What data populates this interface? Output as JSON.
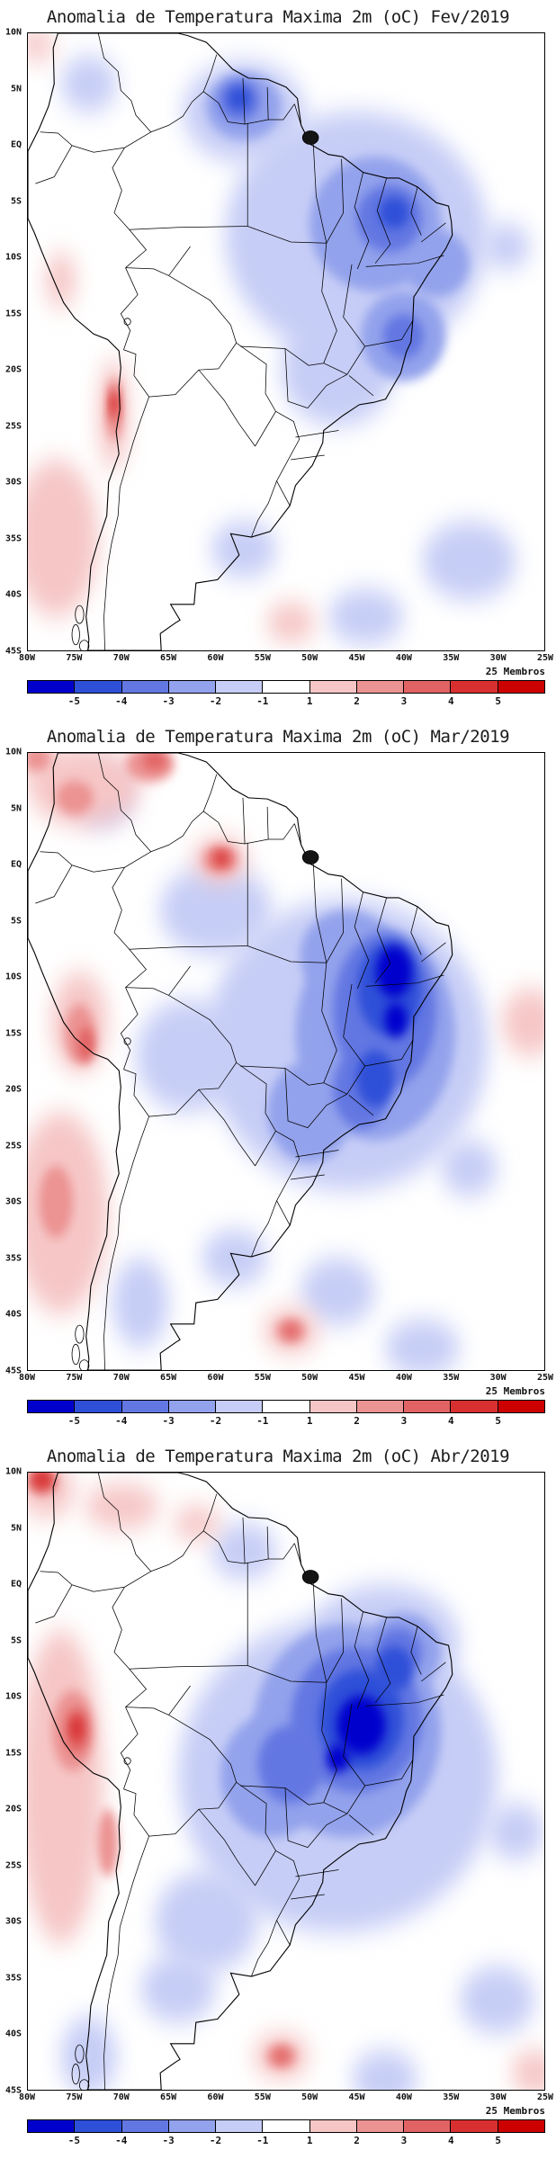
{
  "figure": {
    "type": "ensemble temperature anomaly forecast maps",
    "region": "South America",
    "variable": "Anomalia de Temperatura Maxima 2m (oC)",
    "units": "oC"
  },
  "axes": {
    "lat_labels": [
      "10N",
      "5N",
      "EQ",
      "5S",
      "10S",
      "15S",
      "20S",
      "25S",
      "30S",
      "35S",
      "40S",
      "45S"
    ],
    "lon_labels": [
      "80W",
      "75W",
      "70W",
      "65W",
      "60W",
      "55W",
      "50W",
      "45W",
      "40W",
      "35W",
      "30W",
      "25W"
    ],
    "lon_range_deg_w": [
      80,
      25
    ],
    "lat_range_deg": [
      10,
      -45
    ]
  },
  "colorbar": {
    "tick_labels": [
      "-5",
      "-4",
      "-3",
      "-2",
      "-1",
      "1",
      "2",
      "3",
      "4",
      "5"
    ],
    "colors": [
      "#0000cd",
      "#2e4fd8",
      "#6377e2",
      "#93a2ec",
      "#c6cdf6",
      "#ffffff",
      "#f6c6c6",
      "#ec9393",
      "#e26363",
      "#d83030",
      "#cd0000"
    ]
  },
  "anomaly_format": [
    "lon_w",
    "lat",
    "rx_deg",
    "ry_deg",
    "level"
  ],
  "panels": [
    {
      "id": "fev",
      "title": "Anomalia de Temperatura Maxima 2m (oC) Fev/2019",
      "members_label": "25 Membros",
      "anomalies": [
        [
          73.5,
          5.5,
          3,
          2.5,
          -1
        ],
        [
          45,
          -8,
          14,
          11,
          -1
        ],
        [
          57,
          3,
          6.5,
          4.5,
          -1
        ],
        [
          47,
          -20,
          6,
          5,
          -1
        ],
        [
          33,
          -37,
          5,
          3.5,
          -1
        ],
        [
          57,
          -36,
          3.5,
          2.5,
          -1
        ],
        [
          44,
          -42,
          4,
          2.5,
          -1
        ],
        [
          29,
          -9,
          2.5,
          2,
          -1
        ],
        [
          43,
          -7,
          7,
          6,
          -2
        ],
        [
          40,
          -17,
          4.5,
          4,
          -2
        ],
        [
          57,
          3.5,
          4,
          3,
          -2
        ],
        [
          36.5,
          -10.5,
          3.5,
          3,
          -2
        ],
        [
          41.5,
          -6.5,
          3.5,
          3,
          -3
        ],
        [
          40,
          -17,
          2.2,
          2,
          -3
        ],
        [
          57.5,
          4,
          2.2,
          1.8,
          -3
        ],
        [
          41,
          -6,
          1.6,
          1.4,
          -4
        ],
        [
          57.5,
          4.2,
          1.2,
          1,
          -4
        ],
        [
          79,
          9,
          1.8,
          1.5,
          1
        ],
        [
          76.5,
          -12,
          1.6,
          2.5,
          1
        ],
        [
          77,
          -35,
          4.5,
          7,
          1
        ],
        [
          70.9,
          -24,
          1.6,
          5,
          1
        ],
        [
          70.8,
          -23.5,
          0.9,
          2.8,
          2
        ],
        [
          70.8,
          -23.2,
          0.55,
          1.6,
          3
        ],
        [
          70.8,
          -23,
          0.35,
          0.9,
          4
        ],
        [
          52,
          -42.5,
          2.6,
          1.8,
          1
        ]
      ]
    },
    {
      "id": "mar",
      "title": "Anomalia de Temperatura Maxima 2m (oC) Mar/2019",
      "members_label": "25 Membros",
      "anomalies": [
        [
          46,
          -16,
          15,
          13,
          -1
        ],
        [
          60,
          -4,
          6,
          4,
          -1
        ],
        [
          63,
          -17,
          5.5,
          5,
          -1
        ],
        [
          72,
          6,
          3,
          2.5,
          -1
        ],
        [
          58,
          -35,
          3.5,
          2.5,
          -1
        ],
        [
          47,
          -38,
          4,
          3,
          -1
        ],
        [
          38,
          -43,
          4,
          2.5,
          -1
        ],
        [
          68,
          -39,
          3,
          4,
          -1
        ],
        [
          33,
          -27,
          3,
          2.5,
          -1
        ],
        [
          43,
          -15,
          8.5,
          9.5,
          -2
        ],
        [
          46,
          -8,
          5,
          4,
          -2
        ],
        [
          50,
          -22,
          4.5,
          4.5,
          -2
        ],
        [
          72.3,
          6.2,
          1.4,
          1.1,
          -2
        ],
        [
          42,
          -13,
          5.5,
          7,
          -3
        ],
        [
          44.5,
          -20,
          3,
          3.5,
          -3
        ],
        [
          41.5,
          -11,
          3.4,
          4.2,
          -4
        ],
        [
          43,
          -19,
          2,
          2.5,
          -4
        ],
        [
          41,
          -9.5,
          1.9,
          2.3,
          -5
        ],
        [
          40.8,
          -13.8,
          1.2,
          1.5,
          -5
        ],
        [
          74,
          7,
          6,
          3.5,
          1
        ],
        [
          79,
          9.5,
          2.2,
          1.8,
          1
        ],
        [
          79,
          9.5,
          1.4,
          1.1,
          2
        ],
        [
          75,
          6,
          2,
          1.5,
          2
        ],
        [
          67,
          9,
          2.6,
          1.6,
          2
        ],
        [
          66.5,
          9.3,
          1.3,
          0.8,
          3
        ],
        [
          59.5,
          0.5,
          3,
          2,
          1
        ],
        [
          59.5,
          0.5,
          1.9,
          1.3,
          2
        ],
        [
          59.4,
          0.6,
          1.1,
          0.8,
          3
        ],
        [
          59.4,
          0.6,
          0.6,
          0.45,
          4
        ],
        [
          74.5,
          -14,
          3,
          4.5,
          1
        ],
        [
          74.5,
          -15,
          1.6,
          2.6,
          2
        ],
        [
          73.8,
          -16,
          0.9,
          1.6,
          3
        ],
        [
          76.5,
          -31,
          5,
          9,
          1
        ],
        [
          77,
          -30,
          1.8,
          3.2,
          2
        ],
        [
          26.5,
          -14,
          3,
          3,
          1
        ],
        [
          52,
          -41.5,
          3,
          2,
          1
        ],
        [
          52,
          -41.5,
          1.6,
          1.1,
          2
        ],
        [
          52,
          -41.5,
          0.8,
          0.6,
          3
        ]
      ]
    },
    {
      "id": "abr",
      "title": "Anomalia de Temperatura Maxima 2m (oC) Abr/2019",
      "members_label": "25 Membros",
      "anomalies": [
        [
          47,
          -17,
          17,
          14,
          -1
        ],
        [
          42,
          -5,
          8,
          5,
          -1
        ],
        [
          61,
          -30,
          5.5,
          4.5,
          -1
        ],
        [
          64,
          -36,
          4,
          3,
          -1
        ],
        [
          73.5,
          -42,
          3,
          3.5,
          -1
        ],
        [
          30,
          -37,
          4,
          3,
          -1
        ],
        [
          42,
          -44,
          3.5,
          2.5,
          -1
        ],
        [
          28,
          -22,
          3,
          2.5,
          -1
        ],
        [
          57,
          3,
          3.5,
          2.5,
          -1
        ],
        [
          46,
          -13,
          10,
          9.5,
          -2
        ],
        [
          54,
          -17,
          5.5,
          5.5,
          -2
        ],
        [
          40,
          -6,
          4,
          3.5,
          -2
        ],
        [
          45,
          -12,
          7,
          6.5,
          -3
        ],
        [
          52,
          -16,
          3.5,
          3.5,
          -3
        ],
        [
          40.5,
          -6,
          2.5,
          2.2,
          -3
        ],
        [
          44.5,
          -12,
          4.5,
          4.5,
          -4
        ],
        [
          41,
          -7.5,
          2,
          2,
          -4
        ],
        [
          44.5,
          -12.5,
          2.6,
          2.6,
          -5
        ],
        [
          47,
          -15.5,
          1.2,
          1.2,
          -5
        ],
        [
          76.5,
          -18,
          4.5,
          14,
          1
        ],
        [
          75.2,
          -13,
          2.2,
          3.6,
          2
        ],
        [
          74.8,
          -13,
          1.2,
          2,
          3
        ],
        [
          74.8,
          -12.8,
          0.7,
          1.1,
          4
        ],
        [
          71.5,
          -23,
          1.1,
          3,
          2
        ],
        [
          78,
          8.5,
          3,
          2.5,
          1
        ],
        [
          78.5,
          9.3,
          1.6,
          1.2,
          3
        ],
        [
          78.5,
          9.4,
          0.9,
          0.7,
          4
        ],
        [
          70,
          7,
          4,
          2,
          1
        ],
        [
          62,
          5.5,
          2.5,
          1.5,
          1
        ],
        [
          53,
          -42,
          3,
          2,
          1
        ],
        [
          53,
          -42,
          1.6,
          1.1,
          2
        ],
        [
          53,
          -42,
          0.8,
          0.6,
          3
        ],
        [
          26,
          -43.5,
          2.5,
          2,
          1
        ]
      ]
    }
  ]
}
